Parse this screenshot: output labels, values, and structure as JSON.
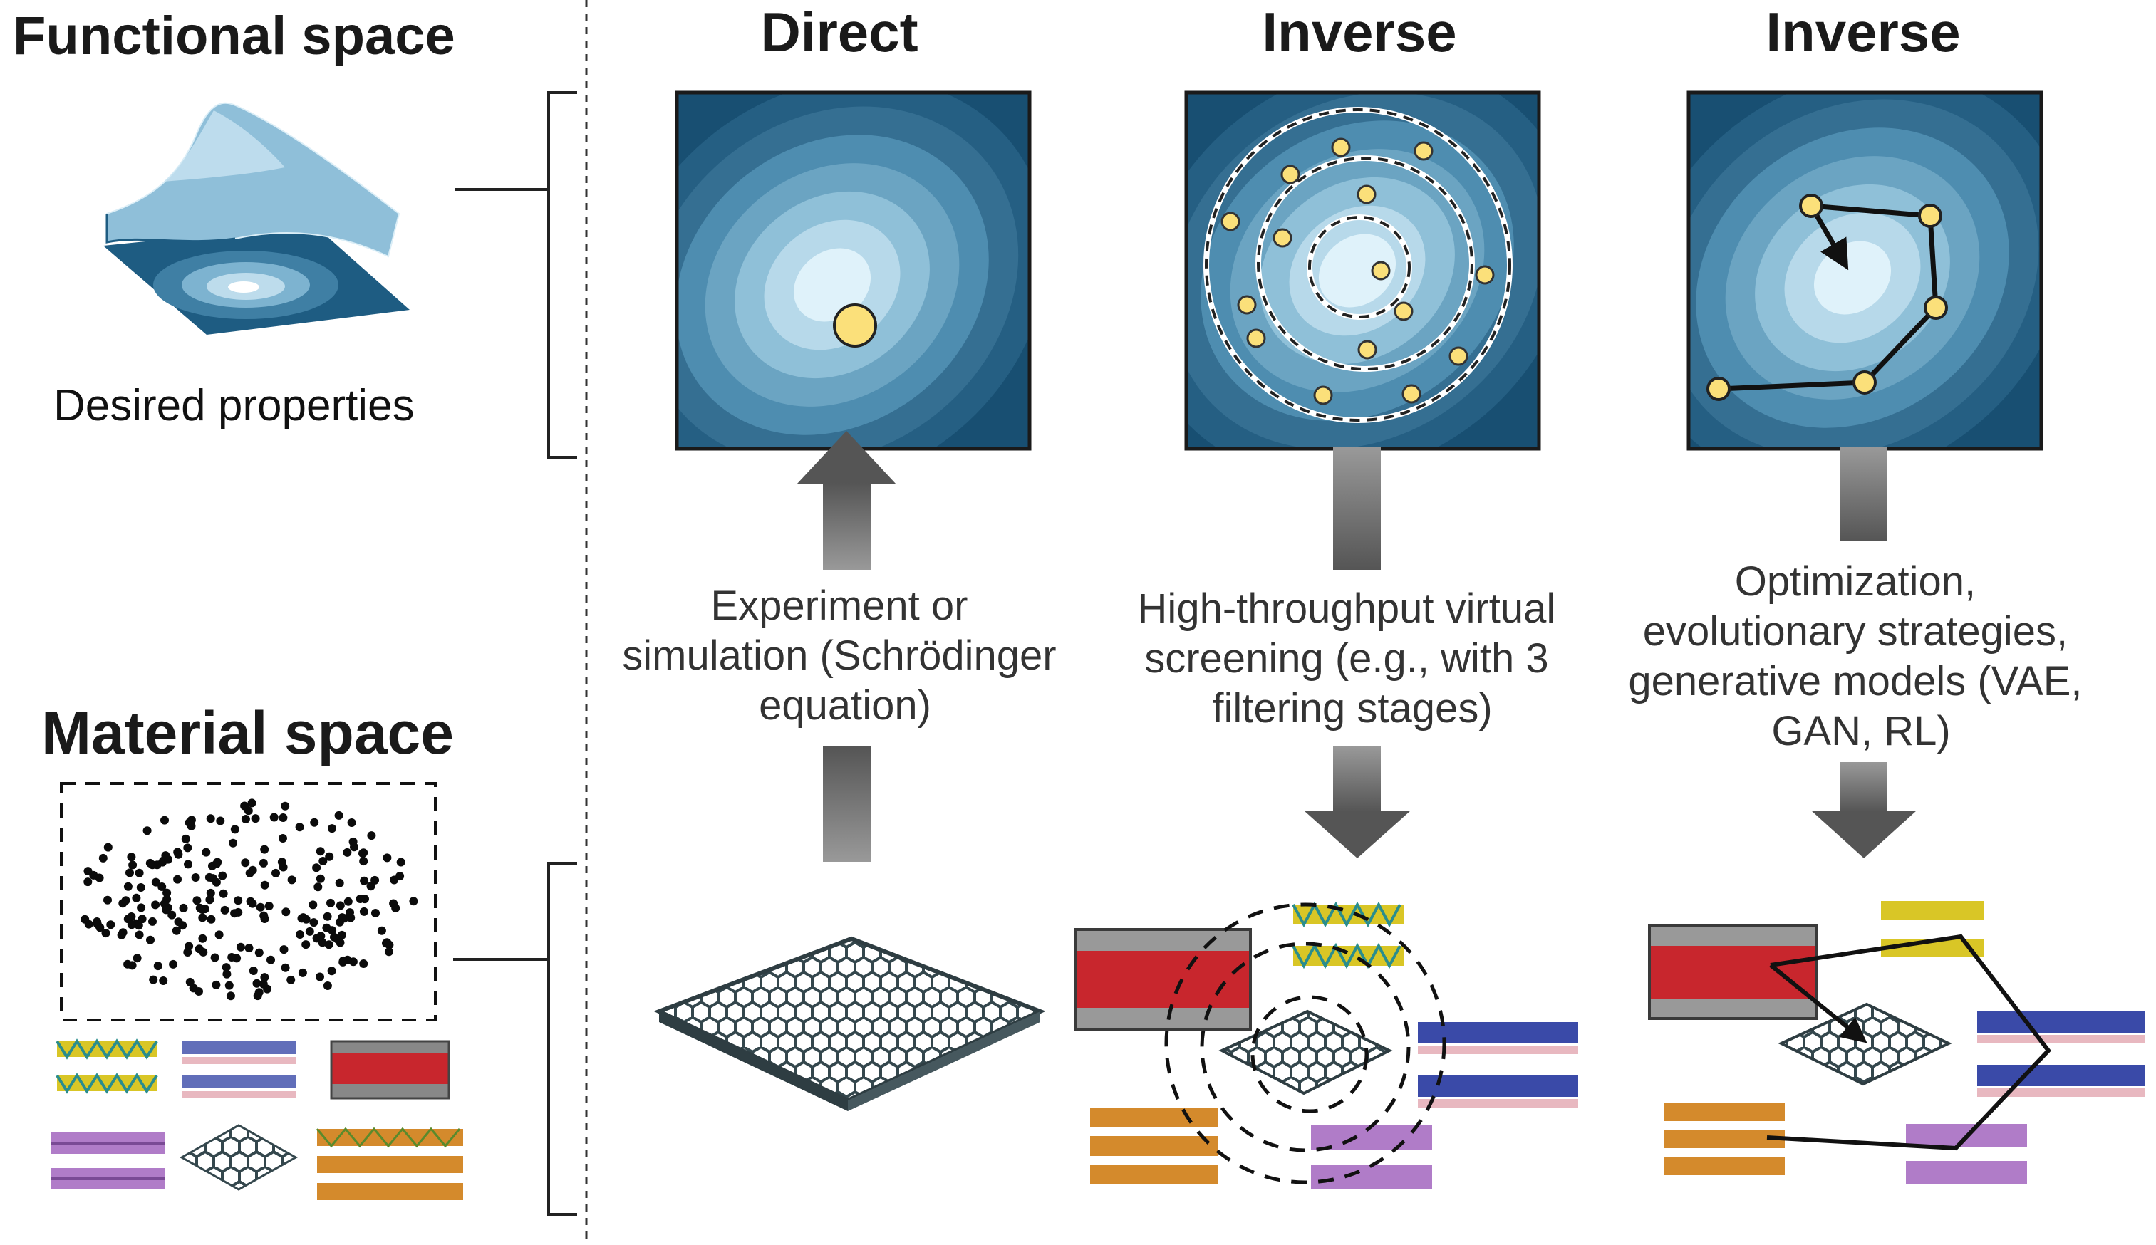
{
  "left": {
    "functional_title": "Functional space",
    "functional_caption": "Desired properties",
    "material_title": "Material space"
  },
  "columns": [
    {
      "title": "Direct",
      "caption_lines": [
        "Experiment or",
        "simulation (Schrödinger",
        "equation)"
      ],
      "arrow_direction": "up"
    },
    {
      "title": "Inverse",
      "caption_lines": [
        "High-throughput virtual",
        "screening (e.g., with 3",
        "filtering stages)"
      ],
      "arrow_direction": "down"
    },
    {
      "title": "Inverse",
      "caption_lines": [
        "Optimization,",
        "evolutionary strategies,",
        "generative models (VAE,",
        "GAN, RL)"
      ],
      "arrow_direction": "down"
    }
  ],
  "colors": {
    "contour_dark": "#184f72",
    "contour_mid": "#4e8db0",
    "contour_light": "#dff2fa",
    "highlight_point": "#fbe07a",
    "arrow": "#555555",
    "graphene": "#5a6b70",
    "oxide_red": "#c8262d",
    "sulfide_yellow": "#d9c626",
    "nitride_blue": "#3a4aa8",
    "violet": "#b07cc8",
    "orange": "#d48a2c"
  }
}
